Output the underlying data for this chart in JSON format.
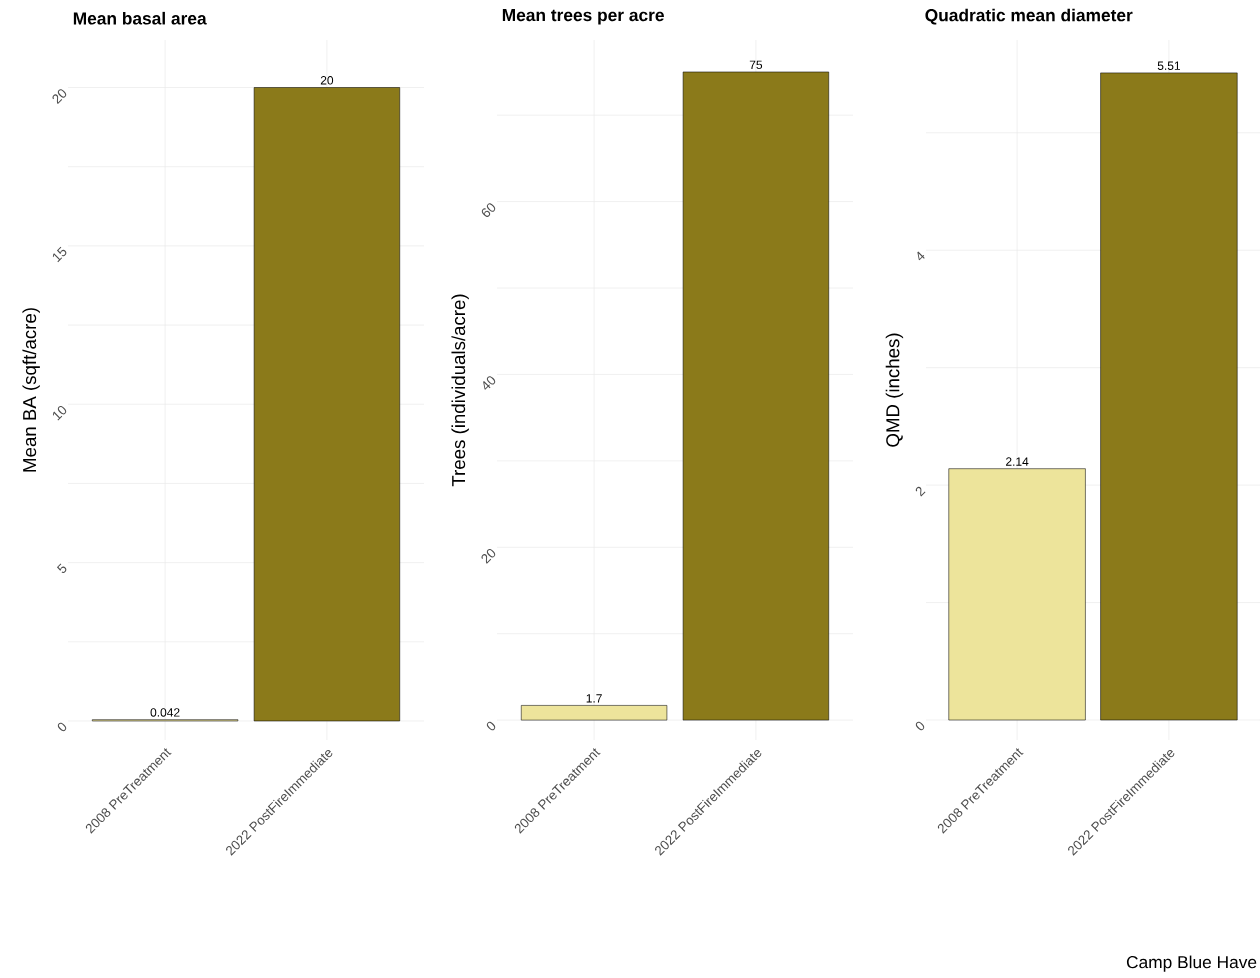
{
  "chart_data": [
    {
      "type": "bar",
      "title": "Mean basal area",
      "ylabel": "Mean BA (sqft/acre)",
      "categories": [
        "2008 PreTreatment",
        "2022 PostFireImmediate"
      ],
      "values": [
        0.042,
        20
      ],
      "colors": [
        "#ede49b",
        "#8b7a1a"
      ],
      "ylim": [
        -0.6,
        21.5
      ],
      "yticks": [
        0,
        {
          "value": 2.5,
          "label": null
        },
        5,
        {
          "value": 7.5,
          "label": null
        },
        10,
        {
          "value": 12.5,
          "label": null
        },
        15,
        {
          "value": 17.5,
          "label": null
        },
        20
      ],
      "grid": true,
      "data_labels": true
    },
    {
      "type": "bar",
      "title": "Mean trees per acre",
      "ylabel": "Trees (individuals/acre)",
      "categories": [
        "2008 PreTreatment",
        "2022 PostFireImmediate"
      ],
      "values": [
        1.7,
        75
      ],
      "colors": [
        "#ede49b",
        "#8b7a1a"
      ],
      "ylim": [
        -2.3,
        78.7
      ],
      "yticks": [
        0,
        {
          "value": 10,
          "label": null
        },
        20,
        {
          "value": 30,
          "label": null
        },
        40,
        {
          "value": 50,
          "label": null
        },
        60,
        {
          "value": 70,
          "label": null
        }
      ],
      "grid": true,
      "data_labels": true
    },
    {
      "type": "bar",
      "title": "Quadratic mean diameter",
      "ylabel": "QMD (inches)",
      "categories": [
        "2008 PreTreatment",
        "2022 PostFireImmediate"
      ],
      "values": [
        2.14,
        5.51
      ],
      "colors": [
        "#ede49b",
        "#8b7a1a"
      ],
      "ylim": [
        -0.17,
        5.79
      ],
      "yticks": [
        0,
        {
          "value": 1,
          "label": null
        },
        2,
        {
          "value": 3,
          "label": null
        },
        4,
        {
          "value": 5,
          "label": null
        }
      ],
      "grid": true,
      "data_labels": true,
      "annotations": [
        "Camp Blue Have"
      ]
    }
  ]
}
